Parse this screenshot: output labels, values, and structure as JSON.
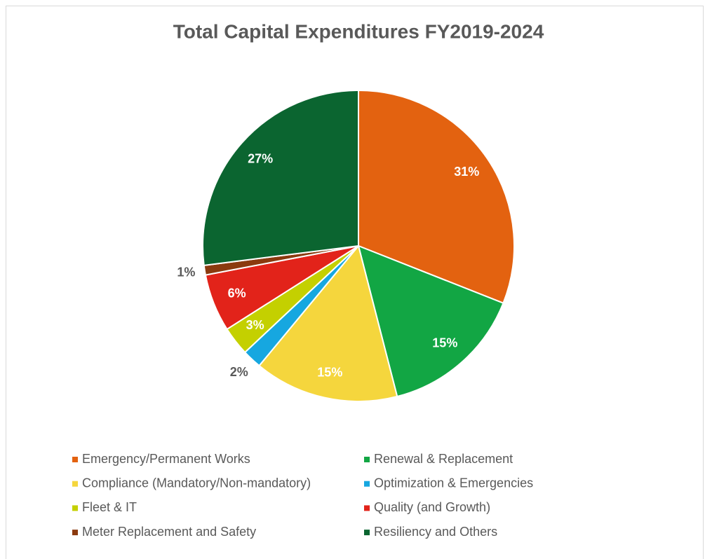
{
  "chart_data": {
    "type": "pie",
    "title": "Total Capital Expenditures FY2019-2024",
    "categories": [
      "Emergency/Permanent Works",
      "Renewal & Replacement",
      "Compliance (Mandatory/Non-mandatory)",
      "Optimization & Emergencies",
      "Fleet & IT",
      "Quality (and Growth)",
      "Meter Replacement and Safety",
      "Resiliency and Others"
    ],
    "values": [
      31,
      15,
      15,
      2,
      3,
      6,
      1,
      27
    ],
    "value_labels": [
      "31%",
      "15%",
      "15%",
      "2%",
      "3%",
      "6%",
      "1%",
      "27%"
    ],
    "colors": [
      "#e36210",
      "#12a644",
      "#f5d63d",
      "#16a7e0",
      "#c4d000",
      "#e2231a",
      "#8b3a0f",
      "#0b6530"
    ],
    "legend": "bottom"
  }
}
